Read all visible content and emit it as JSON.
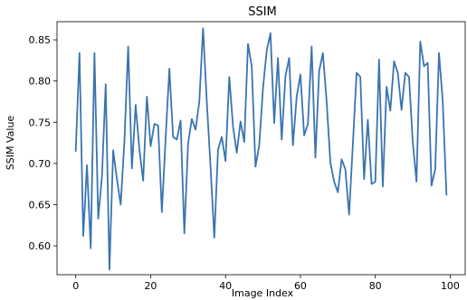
{
  "chart_data": {
    "type": "line",
    "title": "SSIM",
    "xlabel": "Image Index",
    "ylabel": "SSIM Value",
    "xlim": [
      -5,
      104
    ],
    "ylim": [
      0.565,
      0.872
    ],
    "xticks": [
      0,
      20,
      40,
      60,
      80,
      100
    ],
    "yticks": [
      0.6,
      0.65,
      0.7,
      0.75,
      0.8,
      0.85
    ],
    "xtick_labels": [
      "0",
      "20",
      "40",
      "60",
      "80",
      "100"
    ],
    "ytick_labels": [
      "0.60",
      "0.65",
      "0.70",
      "0.75",
      "0.80",
      "0.85"
    ],
    "grid": false,
    "legend": "none",
    "color": "#3a74b0",
    "series": [
      {
        "x": [
          0,
          1,
          2,
          3,
          4,
          5,
          6,
          7,
          8,
          9,
          10,
          11,
          12,
          13,
          14,
          15,
          16,
          17,
          18,
          19,
          20,
          21,
          22,
          23,
          24,
          25,
          26,
          27,
          28,
          29,
          30,
          31,
          32,
          33,
          34,
          35,
          36,
          37,
          38,
          39,
          40,
          41,
          42,
          43,
          44,
          45,
          46,
          47,
          48,
          49,
          50,
          51,
          52,
          53,
          54,
          55,
          56,
          57,
          58,
          59,
          60,
          61,
          62,
          63,
          64,
          65,
          66,
          67,
          68,
          69,
          70,
          71,
          72,
          73,
          74,
          75,
          76,
          77,
          78,
          79,
          80,
          81,
          82,
          83,
          84,
          85,
          86,
          87,
          88,
          89,
          90,
          91,
          92,
          93,
          94,
          95,
          96,
          97,
          98,
          99
        ],
        "values": [
          0.715,
          0.834,
          0.612,
          0.698,
          0.597,
          0.834,
          0.633,
          0.684,
          0.796,
          0.571,
          0.716,
          0.681,
          0.65,
          0.727,
          0.842,
          0.694,
          0.771,
          0.717,
          0.679,
          0.781,
          0.721,
          0.748,
          0.746,
          0.641,
          0.73,
          0.815,
          0.732,
          0.729,
          0.752,
          0.615,
          0.724,
          0.754,
          0.741,
          0.775,
          0.864,
          0.775,
          0.696,
          0.61,
          0.717,
          0.732,
          0.703,
          0.805,
          0.745,
          0.713,
          0.751,
          0.726,
          0.845,
          0.818,
          0.696,
          0.722,
          0.791,
          0.837,
          0.858,
          0.749,
          0.828,
          0.729,
          0.806,
          0.828,
          0.722,
          0.781,
          0.808,
          0.734,
          0.748,
          0.842,
          0.707,
          0.812,
          0.834,
          0.775,
          0.701,
          0.678,
          0.665,
          0.705,
          0.693,
          0.638,
          0.723,
          0.81,
          0.805,
          0.681,
          0.753,
          0.675,
          0.678,
          0.826,
          0.672,
          0.793,
          0.764,
          0.824,
          0.81,
          0.765,
          0.81,
          0.805,
          0.726,
          0.678,
          0.848,
          0.818,
          0.822,
          0.673,
          0.693,
          0.834,
          0.776,
          0.662
        ]
      }
    ]
  }
}
